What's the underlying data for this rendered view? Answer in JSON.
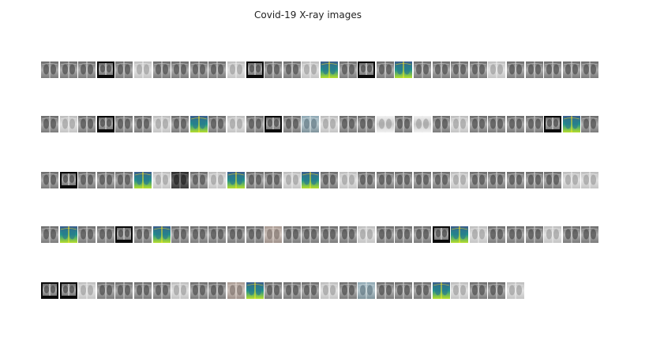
{
  "figure": {
    "title": "Covid-19 X-ray images"
  },
  "thumbnails": {
    "rows": [
      {
        "count": 30,
        "palettes": [
          "g",
          "g",
          "g",
          "bf",
          "g",
          "l",
          "g",
          "g",
          "g",
          "g",
          "l",
          "bf",
          "g",
          "g",
          "l",
          "v",
          "g",
          "bf",
          "g",
          "v",
          "g",
          "g",
          "g",
          "g",
          "l",
          "g",
          "g",
          "g",
          "g",
          "g"
        ]
      },
      {
        "count": 30,
        "palettes": [
          "g",
          "l",
          "g",
          "bf",
          "g",
          "g",
          "l",
          "g",
          "v",
          "g",
          "l",
          "g",
          "bf",
          "g",
          "b",
          "l",
          "g",
          "g",
          "w",
          "g",
          "w",
          "g",
          "l",
          "g",
          "g",
          "g",
          "g",
          "bf",
          "v",
          "g"
        ]
      },
      {
        "count": 30,
        "palettes": [
          "g",
          "bf",
          "g",
          "g",
          "g",
          "v",
          "l",
          "d",
          "g",
          "l",
          "v",
          "g",
          "g",
          "l",
          "v",
          "g",
          "l",
          "g",
          "g",
          "g",
          "g",
          "g",
          "l",
          "g",
          "g",
          "g",
          "g",
          "g",
          "l",
          "l"
        ]
      },
      {
        "count": 30,
        "palettes": [
          "g",
          "v",
          "g",
          "g",
          "bf",
          "g",
          "v",
          "g",
          "g",
          "g",
          "g",
          "g",
          "s",
          "g",
          "g",
          "g",
          "g",
          "l",
          "g",
          "g",
          "g",
          "bf",
          "v",
          "l",
          "g",
          "g",
          "g",
          "l",
          "g",
          "g"
        ]
      },
      {
        "count": 26,
        "palettes": [
          "bf",
          "bf",
          "l",
          "g",
          "g",
          "g",
          "g",
          "l",
          "g",
          "g",
          "s",
          "v",
          "g",
          "g",
          "g",
          "l",
          "g",
          "b",
          "g",
          "g",
          "g",
          "v",
          "l",
          "g",
          "g",
          "l"
        ]
      }
    ]
  },
  "colors": {
    "viridis_dark": "#3b5c8c",
    "viridis_mid": "#21918c",
    "viridis_light": "#b5de2b",
    "xray_dark": "#3a3a3a",
    "xray_light": "#d8d8d8"
  }
}
